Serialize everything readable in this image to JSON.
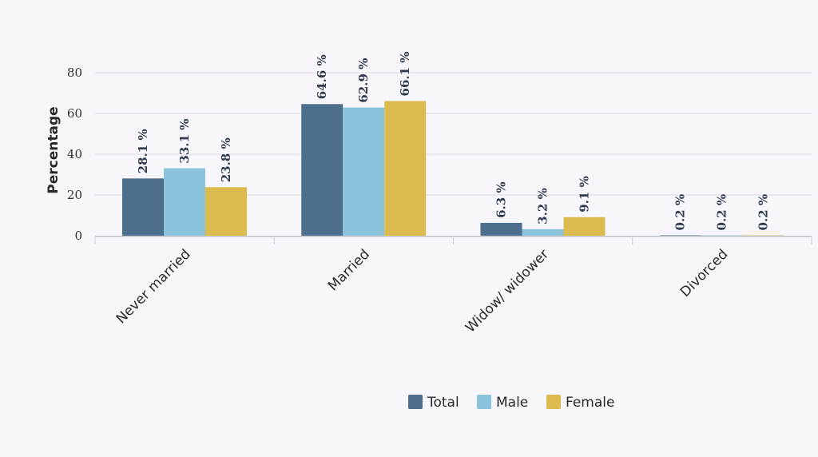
{
  "chart_data": {
    "type": "bar",
    "ylabel": "Percentage",
    "ylim": [
      0,
      80
    ],
    "yticks": [
      0,
      20,
      40,
      60,
      80
    ],
    "grid": true,
    "legend_position": "bottom",
    "categories": [
      "Never married",
      "Married",
      "Widow/ widower",
      "Divorced"
    ],
    "series": [
      {
        "name": "Total",
        "color": "#4e6e8e",
        "values": [
          28.1,
          64.6,
          6.3,
          0.2
        ],
        "labels": [
          "28.1 %",
          "64.6 %",
          "6.3 %",
          "0.2 %"
        ]
      },
      {
        "name": "Male",
        "color": "#8cc3dc",
        "values": [
          33.1,
          62.9,
          3.2,
          0.2
        ],
        "labels": [
          "33.1 %",
          "62.9 %",
          "3.2 %",
          "0.2 %"
        ]
      },
      {
        "name": "Female",
        "color": "#dcba4e",
        "values": [
          23.8,
          66.1,
          9.1,
          0.2
        ],
        "labels": [
          "23.8 %",
          "66.1 %",
          "9.1 %",
          "0.2 %"
        ]
      }
    ]
  }
}
